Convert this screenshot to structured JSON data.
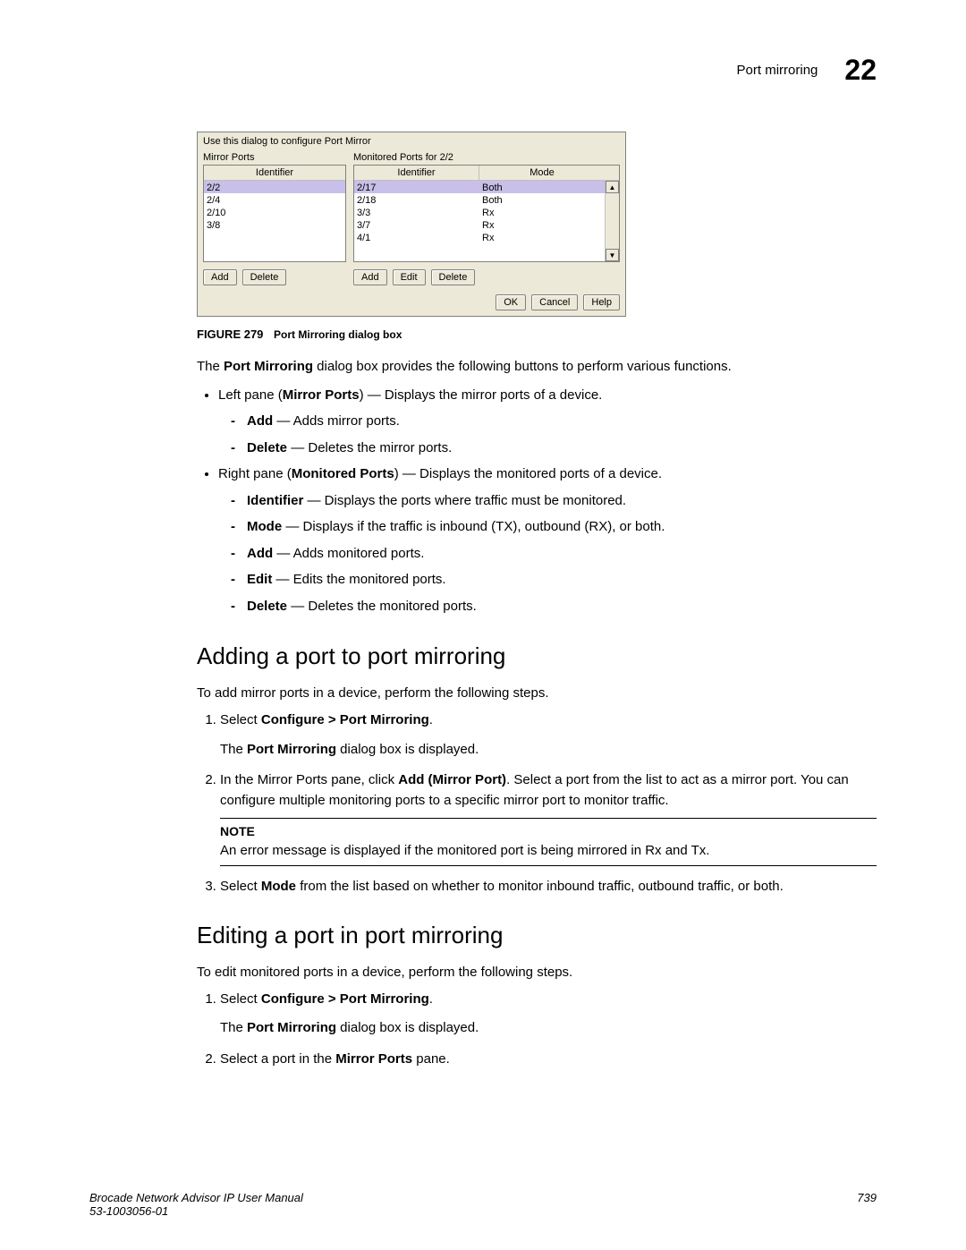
{
  "header": {
    "section": "Port mirroring",
    "chapter": "22"
  },
  "dialog": {
    "instruction": "Use this dialog to configure Port Mirror",
    "mirror_title": "Mirror Ports",
    "monitored_title": "Monitored Ports for 2/2",
    "col_identifier": "Identifier",
    "col_mode": "Mode",
    "mirror_rows": [
      "2/2",
      "2/4",
      "2/10",
      "3/8"
    ],
    "monitored_rows": [
      {
        "id": "2/17",
        "mode": "Both"
      },
      {
        "id": "2/18",
        "mode": "Both"
      },
      {
        "id": "3/3",
        "mode": "Rx"
      },
      {
        "id": "3/7",
        "mode": "Rx"
      },
      {
        "id": "4/1",
        "mode": "Rx"
      }
    ],
    "btn_add": "Add",
    "btn_edit": "Edit",
    "btn_delete": "Delete",
    "btn_ok": "OK",
    "btn_cancel": "Cancel",
    "btn_help": "Help",
    "arrow_up": "▲",
    "arrow_down": "▼"
  },
  "figure": {
    "num": "FIGURE 279",
    "caption": "Port Mirroring dialog box"
  },
  "para1_a": "The ",
  "para1_b": "Port Mirroring",
  "para1_c": " dialog box provides the following buttons to perform various functions.",
  "bul": {
    "lp_a": "Left pane (",
    "lp_b": "Mirror Ports",
    "lp_c": ") — Displays the mirror ports of a device.",
    "lp_add_a": "Add",
    "lp_add_b": " — Adds mirror ports.",
    "lp_del_a": "Delete",
    "lp_del_b": " — Deletes the mirror ports.",
    "rp_a": "Right pane (",
    "rp_b": "Monitored Ports",
    "rp_c": ") — Displays the monitored ports of a device.",
    "rp_id_a": "Identifier",
    "rp_id_b": " — Displays the ports where traffic must be monitored.",
    "rp_mode_a": "Mode",
    "rp_mode_b": " — Displays if the traffic is inbound (TX), outbound (RX), or both.",
    "rp_add_a": "Add",
    "rp_add_b": " — Adds monitored ports.",
    "rp_edit_a": "Edit",
    "rp_edit_b": " — Edits the monitored ports.",
    "rp_del_a": "Delete",
    "rp_del_b": " — Deletes the monitored ports."
  },
  "h_add": "Adding a port to port mirroring",
  "add_intro": "To add mirror ports in a device, perform the following steps.",
  "step1_a": "Select ",
  "step1_b": "Configure > Port Mirroring",
  "step1_c": ".",
  "step1_sub_a": "The ",
  "step1_sub_b": "Port Mirroring",
  "step1_sub_c": " dialog box is displayed.",
  "step2_a": "In the Mirror Ports pane, click ",
  "step2_b": "Add (Mirror Port)",
  "step2_c": ". Select a port from the list to act as a mirror port. You can configure multiple monitoring ports to a specific mirror port to monitor traffic.",
  "note_label": "NOTE",
  "note_text": "An error message is displayed if the monitored port is being mirrored in Rx and Tx.",
  "step3_a": "Select ",
  "step3_b": "Mode",
  "step3_c": " from the list based on whether to monitor inbound traffic, outbound traffic, or both.",
  "h_edit": "Editing a port in port mirroring",
  "edit_intro": "To edit monitored ports in a device, perform the following steps.",
  "estep2_a": "Select a port in the ",
  "estep2_b": "Mirror Ports",
  "estep2_c": " pane.",
  "footer": {
    "title": "Brocade Network Advisor IP User Manual",
    "docnum": "53-1003056-01",
    "page": "739"
  }
}
